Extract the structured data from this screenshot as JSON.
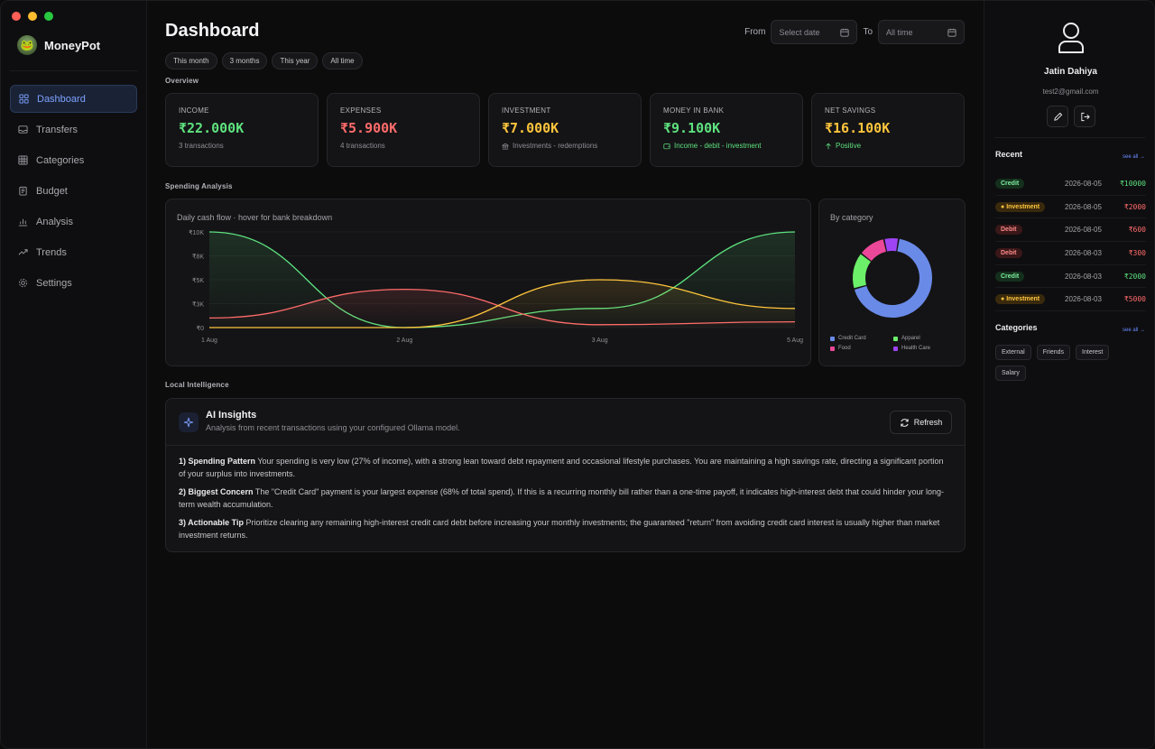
{
  "app": {
    "name": "MoneyPot"
  },
  "sidebar": {
    "items": [
      {
        "label": "Dashboard",
        "icon": "grid-icon",
        "active": true
      },
      {
        "label": "Transfers",
        "icon": "inbox-icon"
      },
      {
        "label": "Categories",
        "icon": "table-icon"
      },
      {
        "label": "Budget",
        "icon": "clipboard-icon"
      },
      {
        "label": "Analysis",
        "icon": "bar-chart-icon"
      },
      {
        "label": "Trends",
        "icon": "trend-icon"
      },
      {
        "label": "Settings",
        "icon": "gear-icon"
      }
    ]
  },
  "header": {
    "title": "Dashboard",
    "from_label": "From",
    "from_placeholder": "Select date",
    "to_label": "To",
    "to_value": "All time"
  },
  "ranges": [
    "This month",
    "3 months",
    "This year",
    "All time"
  ],
  "overview": {
    "label": "Overview",
    "cards": [
      {
        "label": "INCOME",
        "value": "₹22.000K",
        "sub": "3 transactions",
        "color": "#5ee27f"
      },
      {
        "label": "EXPENSES",
        "value": "₹5.900K",
        "sub": "4 transactions",
        "color": "#ff6b6b"
      },
      {
        "label": "INVESTMENT",
        "value": "₹7.000K",
        "sub": "Investments - redemptions",
        "color": "#ffc53d"
      },
      {
        "label": "MONEY IN BANK",
        "value": "₹9.100K",
        "sub": "Income - debit - investment",
        "color": "#5ee27f"
      },
      {
        "label": "NET SAVINGS",
        "value": "₹16.100K",
        "sub": "Positive",
        "color": "#ffc53d"
      }
    ]
  },
  "spending": {
    "label": "Spending Analysis",
    "caption": "Daily cash flow · hover for bank breakdown",
    "donut_caption": "By category"
  },
  "chart_data": [
    {
      "type": "line",
      "x": [
        "1 Aug",
        "2 Aug",
        "3 Aug",
        "5 Aug"
      ],
      "yticks": [
        "₹0",
        "₹3K",
        "₹5K",
        "₹8K",
        "₹10K"
      ],
      "ylim": [
        0,
        10000
      ],
      "series": [
        {
          "color": "#5ee27f",
          "values": [
            10000,
            0,
            2000,
            10000
          ]
        },
        {
          "color": "#ff6b6b",
          "values": [
            1000,
            4000,
            300,
            600
          ]
        },
        {
          "color": "#ffc53d",
          "values": [
            0,
            0,
            5000,
            2000
          ]
        }
      ]
    },
    {
      "type": "pie",
      "labels": [
        "Credit Card",
        "Apparel",
        "Food",
        "Health Care"
      ],
      "values": [
        68,
        15,
        11,
        6
      ],
      "colors": [
        "#6a8ae8",
        "#6cf06a",
        "#ec4899",
        "#9f44f5"
      ]
    }
  ],
  "intelligence": {
    "label": "Local Intelligence",
    "title": "AI Insights",
    "subtitle": "Analysis from recent transactions using your configured Ollama model.",
    "refresh_label": "Refresh",
    "items": [
      {
        "heading": "1) Spending Pattern",
        "text": " Your spending is very low (27% of income), with a strong lean toward debt repayment and occasional lifestyle purchases. You are maintaining a high savings rate, directing a significant portion of your surplus into investments."
      },
      {
        "heading": "2) Biggest Concern",
        "text": " The \"Credit Card\" payment is your largest expense (68% of total spend). If this is a recurring monthly bill rather than a one-time payoff, it indicates high-interest debt that could hinder your long-term wealth accumulation."
      },
      {
        "heading": "3) Actionable Tip",
        "text": " Prioritize clearing any remaining high-interest credit card debt before increasing your monthly investments; the guaranteed \"return\" from avoiding credit card interest is usually higher than market investment returns."
      }
    ]
  },
  "profile": {
    "name": "Jatin Dahiya",
    "email": "test2@gmail.com"
  },
  "recent": {
    "title": "Recent",
    "see_all": "see all →",
    "rows": [
      {
        "type": "Credit",
        "date": "2026-08-05",
        "amount": "₹10000",
        "color": "#5ee27f"
      },
      {
        "type": "Investment",
        "date": "2026-08-05",
        "amount": "₹2000",
        "color": "#ff6b6b"
      },
      {
        "type": "Debit",
        "date": "2026-08-05",
        "amount": "₹600",
        "color": "#ff6b6b"
      },
      {
        "type": "Debit",
        "date": "2026-08-03",
        "amount": "₹300",
        "color": "#ff6b6b"
      },
      {
        "type": "Credit",
        "date": "2026-08-03",
        "amount": "₹2000",
        "color": "#5ee27f"
      },
      {
        "type": "Investment",
        "date": "2026-08-03",
        "amount": "₹5000",
        "color": "#ff6b6b"
      }
    ]
  },
  "categories": {
    "title": "Categories",
    "see_all": "see all →",
    "tags": [
      "External",
      "Friends",
      "Interest",
      "Salary"
    ]
  }
}
